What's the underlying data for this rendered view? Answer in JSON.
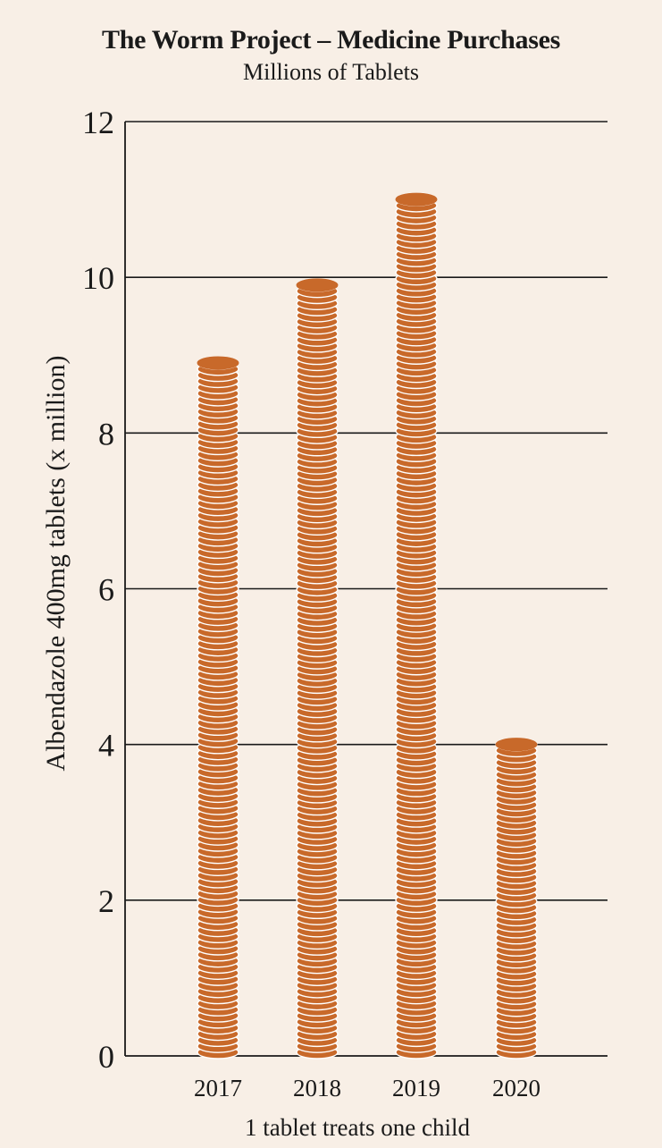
{
  "chart_data": {
    "type": "bar",
    "title": "The Worm Project – Medicine Purchases",
    "subtitle": "Millions of Tablets",
    "ylabel": "Albendazole 400mg tablets (x million)",
    "xlabel": "",
    "note": "1 tablet treats one child",
    "categories": [
      "2017",
      "2018",
      "2019",
      "2020"
    ],
    "values": [
      8.9,
      9.9,
      11.0,
      4.0
    ],
    "ylim": [
      0,
      12
    ],
    "yticks": [
      0,
      2,
      4,
      6,
      8,
      10,
      12
    ],
    "grid": true,
    "bar_style": "stacked tablets",
    "colors": {
      "bar": "#c8692a",
      "bar_edge": "#ffffff",
      "background": "#f8efe6",
      "grid": "#1a1a1a"
    }
  }
}
